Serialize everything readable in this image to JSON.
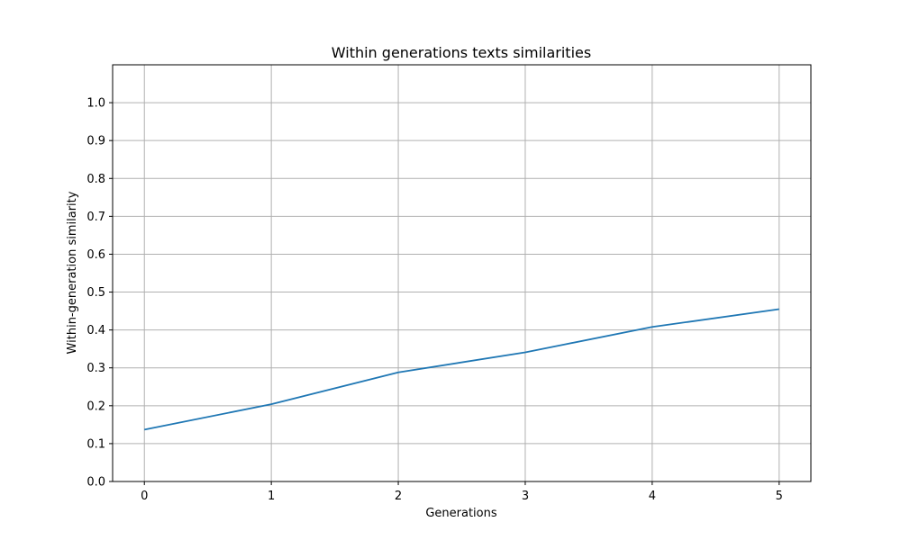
{
  "chart_data": {
    "type": "line",
    "title": "Within generations texts similarities",
    "xlabel": "Generations",
    "ylabel": "Within-generation similarity",
    "x": [
      0,
      1,
      2,
      3,
      4,
      5
    ],
    "series": [
      {
        "values": [
          0.137,
          0.204,
          0.288,
          0.341,
          0.408,
          0.455
        ],
        "color": "#1f77b4"
      }
    ],
    "xlim": [
      -0.25,
      5.25
    ],
    "ylim": [
      0.0,
      1.1
    ],
    "x_ticks": [
      0,
      1,
      2,
      3,
      4,
      5
    ],
    "y_ticks": [
      0.0,
      0.1,
      0.2,
      0.3,
      0.4,
      0.5,
      0.6,
      0.7,
      0.8,
      0.9,
      1.0
    ],
    "grid": true
  }
}
